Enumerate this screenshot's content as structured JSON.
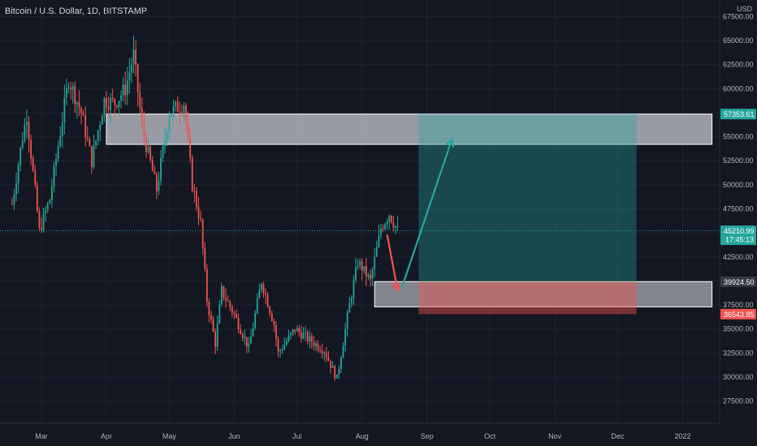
{
  "header": {
    "title": "Bitcoin / U.S. Dollar, 1D, BITSTAMP",
    "currency": "USD"
  },
  "colors": {
    "background": "#131722",
    "up": "#26a69a",
    "down": "#ef5350",
    "axis_text": "#b2b5be",
    "grid": "#1e222d"
  },
  "chart_data": {
    "type": "candlestick",
    "title": "Bitcoin / U.S. Dollar, 1D, BITSTAMP",
    "y_axis_currency": "USD",
    "x_labels": [
      "Mar",
      "Apr",
      "May",
      "Jun",
      "Jul",
      "Aug",
      "Sep",
      "Oct",
      "Nov",
      "Dec",
      "2022"
    ],
    "y_ticks": [
      27500,
      30000,
      32500,
      35000,
      37500,
      40000,
      42500,
      45000,
      47500,
      50000,
      52500,
      55000,
      57500,
      60000,
      62500,
      65000,
      67500
    ],
    "y_tick_labels": [
      "27500.00",
      "30000.00",
      "32500.00",
      "35000.00",
      "37500.00",
      "40000.00",
      "42500.00",
      "45000.00",
      "47500.00",
      "50000.00",
      "52500.00",
      "55000.00",
      "57500.00",
      "60000.00",
      "62500.00",
      "65000.00",
      "67500.00"
    ],
    "y_range": [
      25000,
      68500
    ],
    "series": [
      {
        "date": "2021-02-15",
        "close": 48000
      },
      {
        "date": "2021-02-20",
        "close": 55000
      },
      {
        "date": "2021-02-22",
        "close": 57300
      },
      {
        "date": "2021-02-28",
        "close": 45200
      },
      {
        "date": "2021-03-05",
        "close": 48500
      },
      {
        "date": "2021-03-10",
        "close": 55500
      },
      {
        "date": "2021-03-14",
        "close": 61000
      },
      {
        "date": "2021-03-20",
        "close": 57500
      },
      {
        "date": "2021-03-25",
        "close": 52500
      },
      {
        "date": "2021-03-31",
        "close": 58800
      },
      {
        "date": "2021-04-05",
        "close": 58500
      },
      {
        "date": "2021-04-10",
        "close": 60000
      },
      {
        "date": "2021-04-14",
        "close": 63500
      },
      {
        "date": "2021-04-18",
        "close": 56000
      },
      {
        "date": "2021-04-25",
        "close": 49500
      },
      {
        "date": "2021-05-01",
        "close": 57500
      },
      {
        "date": "2021-05-08",
        "close": 58500
      },
      {
        "date": "2021-05-12",
        "close": 50000
      },
      {
        "date": "2021-05-16",
        "close": 46000
      },
      {
        "date": "2021-05-19",
        "close": 38000
      },
      {
        "date": "2021-05-23",
        "close": 33500
      },
      {
        "date": "2021-05-26",
        "close": 39000
      },
      {
        "date": "2021-06-01",
        "close": 36500
      },
      {
        "date": "2021-06-08",
        "close": 33000
      },
      {
        "date": "2021-06-14",
        "close": 40000
      },
      {
        "date": "2021-06-20",
        "close": 35500
      },
      {
        "date": "2021-06-22",
        "close": 32500
      },
      {
        "date": "2021-06-30",
        "close": 35000
      },
      {
        "date": "2021-07-06",
        "close": 34000
      },
      {
        "date": "2021-07-14",
        "close": 32800
      },
      {
        "date": "2021-07-20",
        "close": 29800
      },
      {
        "date": "2021-07-26",
        "close": 37500
      },
      {
        "date": "2021-07-30",
        "close": 42000
      },
      {
        "date": "2021-08-05",
        "close": 40000
      },
      {
        "date": "2021-08-10",
        "close": 45500
      },
      {
        "date": "2021-08-14",
        "close": 47000
      },
      {
        "date": "2021-08-18",
        "close": 45211
      }
    ],
    "price_labels": [
      {
        "value": 57353.61,
        "label": "57353.61",
        "color": "#26a69a"
      },
      {
        "value": 45210.99,
        "label": "45210.99",
        "sub": "17:45:13",
        "color": "#26a69a"
      },
      {
        "value": 39924.5,
        "label": "39924.50",
        "color": "#363a45"
      },
      {
        "value": 36543.85,
        "label": "36543.85",
        "color": "#ef5350"
      }
    ],
    "zones": [
      {
        "name": "resistance-zone",
        "start": "2021-04-01",
        "end": "2022-01-15",
        "top": 57353.61,
        "bottom": 54200,
        "color": "#d1d4dc"
      },
      {
        "name": "support-zone",
        "start": "2021-08-07",
        "end": "2022-01-15",
        "top": 39924.5,
        "bottom": 37300,
        "color": "#b2b5be"
      }
    ],
    "position": {
      "start": "2021-08-28",
      "end": "2021-12-10",
      "entry": 39924.5,
      "target": 57353.61,
      "stop": 36543.85
    },
    "arrows": [
      {
        "name": "down-arrow",
        "from": {
          "date": "2021-08-13",
          "price": 44800
        },
        "to": {
          "date": "2021-08-18",
          "price": 39000
        },
        "color": "#ef5350"
      },
      {
        "name": "up-arrow",
        "from": {
          "date": "2021-08-20",
          "price": 39300
        },
        "to": {
          "date": "2021-09-13",
          "price": 54800
        },
        "color": "#26a69a"
      }
    ]
  }
}
